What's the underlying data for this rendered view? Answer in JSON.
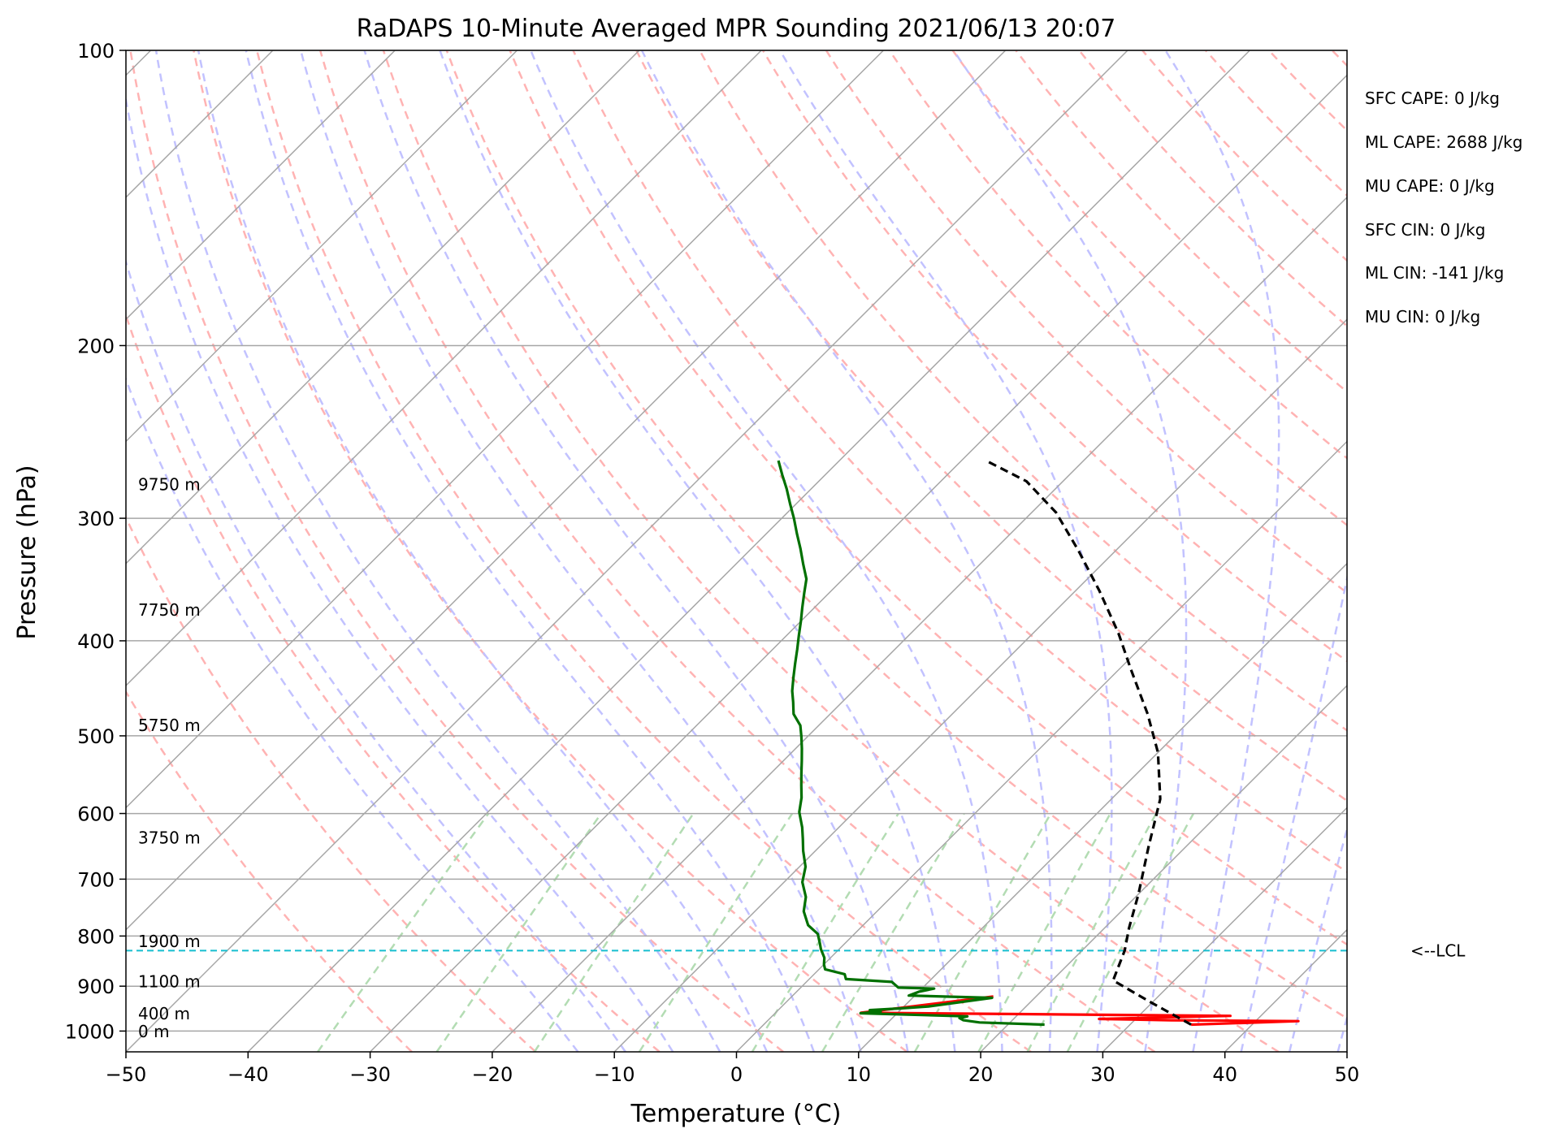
{
  "chart_data": {
    "type": "line",
    "subtype": "skew-t log-p sounding",
    "title": "RaDAPS 10-Minute Averaged MPR Sounding 2021/06/13 20:07",
    "xlabel": "Temperature (°C)",
    "ylabel": "Pressure (hPa)",
    "xlim": [
      -50,
      50
    ],
    "ylim": [
      1050,
      100
    ],
    "y_scale": "log",
    "grid": true,
    "x_ticks": [
      -50,
      -40,
      -30,
      -20,
      -10,
      0,
      10,
      20,
      30,
      40,
      50
    ],
    "y_ticks": [
      1000,
      900,
      800,
      700,
      600,
      500,
      400,
      300,
      200,
      100
    ],
    "x_tick_labels": [
      "−50",
      "−40",
      "−30",
      "−20",
      "−10",
      "0",
      "10",
      "20",
      "30",
      "40",
      "50"
    ],
    "y_tick_labels": [
      "1000",
      "900",
      "800",
      "700",
      "600",
      "500",
      "400",
      "300",
      "200",
      "100"
    ],
    "colors": {
      "dewpoint": "#007000",
      "temperature": "#ff0000",
      "parcel": "#000000",
      "lcl": "#17becf",
      "isotherms": "#a6a6a6",
      "dry_adiabats": "#ffb3b3",
      "moist_adiabats": "#c2c2ff",
      "mixing_ratio": "#b3dcb3"
    },
    "series": [
      {
        "name": "temperature",
        "points": [
          [
            35,
            985
          ],
          [
            43.5,
            977
          ],
          [
            33,
            975
          ],
          [
            27,
            972
          ],
          [
            37.5,
            965
          ],
          [
            16,
            960
          ],
          [
            7,
            958
          ],
          [
            16.5,
            922
          ]
        ]
      },
      {
        "name": "dewpoint",
        "points": [
          [
            23,
            985
          ],
          [
            17.5,
            980
          ],
          [
            16,
            975
          ],
          [
            15.5,
            970
          ],
          [
            16,
            966
          ],
          [
            7,
            959
          ],
          [
            8.5,
            955
          ],
          [
            7.5,
            952
          ],
          [
            10,
            948
          ],
          [
            12,
            944
          ],
          [
            16.5,
            925
          ],
          [
            9.5,
            920
          ],
          [
            10,
            912
          ],
          [
            11,
            905
          ],
          [
            8,
            903
          ],
          [
            7,
            891
          ],
          [
            3,
            885
          ],
          [
            2.5,
            875
          ],
          [
            0.5,
            865
          ],
          [
            0,
            855
          ],
          [
            -0.5,
            842
          ],
          [
            -1.5,
            825
          ],
          [
            -2,
            815
          ],
          [
            -3,
            796
          ],
          [
            -4.5,
            780
          ],
          [
            -6,
            755
          ],
          [
            -7,
            730
          ],
          [
            -8.5,
            705
          ],
          [
            -9.5,
            680
          ],
          [
            -11,
            655
          ],
          [
            -12,
            637
          ],
          [
            -13,
            620
          ],
          [
            -14.5,
            598
          ],
          [
            -15.5,
            578
          ],
          [
            -16.5,
            562
          ],
          [
            -17.5,
            546
          ],
          [
            -18.5,
            530
          ],
          [
            -19.5,
            515
          ],
          [
            -20.5,
            501
          ],
          [
            -21.5,
            488
          ],
          [
            -23,
            475
          ],
          [
            -24,
            462
          ],
          [
            -25,
            450
          ],
          [
            -26,
            436
          ],
          [
            -27,
            422
          ],
          [
            -28,
            408
          ],
          [
            -29,
            395
          ],
          [
            -30,
            382
          ],
          [
            -31,
            370
          ],
          [
            -32,
            358
          ],
          [
            -33,
            346
          ],
          [
            -34.5,
            334
          ],
          [
            -36,
            322
          ],
          [
            -37.5,
            311
          ],
          [
            -39,
            300
          ],
          [
            -40.5,
            290
          ],
          [
            -42,
            280
          ],
          [
            -43.5,
            271
          ],
          [
            -45,
            262
          ]
        ]
      },
      {
        "name": "parcel",
        "points": [
          [
            35,
            985
          ],
          [
            30,
            936
          ],
          [
            25,
            888
          ],
          [
            23.5,
            828
          ],
          [
            22,
            785
          ],
          [
            20,
            725
          ],
          [
            17,
            650
          ],
          [
            14,
            580
          ],
          [
            10,
            520
          ],
          [
            6,
            475
          ],
          [
            1,
            428
          ],
          [
            -3,
            393
          ],
          [
            -8,
            356
          ],
          [
            -13,
            324
          ],
          [
            -18,
            296
          ],
          [
            -23,
            275
          ],
          [
            -28,
            262
          ]
        ]
      }
    ],
    "height_labels": [
      {
        "label": "9750 m",
        "p": 277
      },
      {
        "label": "7750 m",
        "p": 372
      },
      {
        "label": "5750 m",
        "p": 488
      },
      {
        "label": "3750 m",
        "p": 635
      },
      {
        "label": "1900 m",
        "p": 810
      },
      {
        "label": "1100 m",
        "p": 890
      },
      {
        "label": "400 m",
        "p": 960
      },
      {
        "label": "0 m",
        "p": 1001
      }
    ],
    "lcl": {
      "p": 828,
      "label": "<--LCL"
    },
    "annotations": [
      "SFC CAPE: 0 J/kg",
      "ML CAPE: 2688 J/kg",
      "MU CAPE: 0 J/kg",
      "SFC CIN: 0 J/kg",
      "ML CIN: -141 J/kg",
      "MU CIN: 0 J/kg"
    ]
  }
}
